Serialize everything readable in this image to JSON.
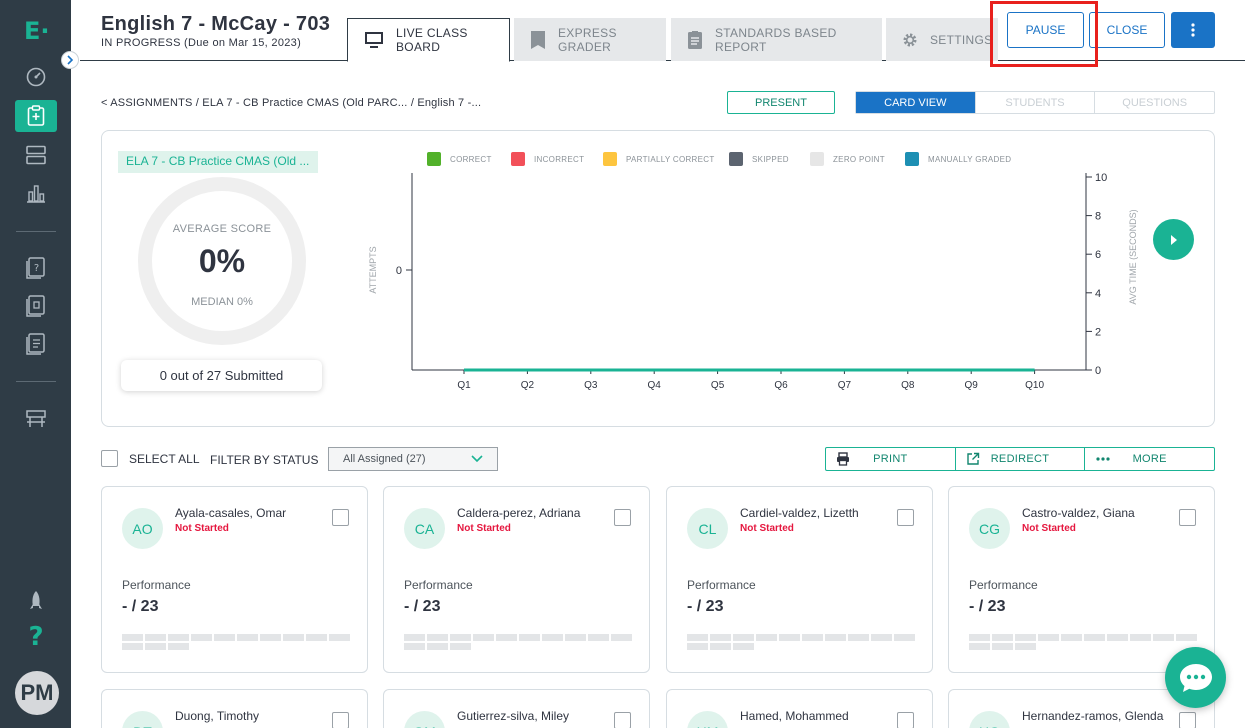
{
  "sidebar": {
    "logo": "E·",
    "user_initials": "PM",
    "items": [
      {
        "name": "dashboard"
      },
      {
        "name": "assignments",
        "active": true
      },
      {
        "name": "library"
      },
      {
        "name": "insights"
      },
      {
        "name": "item-bank"
      },
      {
        "name": "test-bank"
      },
      {
        "name": "playlist"
      },
      {
        "name": "classroom"
      },
      {
        "name": "whats-new"
      },
      {
        "name": "help"
      }
    ]
  },
  "header": {
    "title": "English 7 - McCay - 703",
    "status": "IN PROGRESS (Due on Mar 15, 2023)",
    "tabs": [
      {
        "label": "LIVE CLASS BOARD",
        "icon": "monitor-icon",
        "active": true
      },
      {
        "label": "EXPRESS GRADER",
        "icon": "bookmark-icon"
      },
      {
        "label": "STANDARDS BASED REPORT",
        "icon": "clipboard-icon"
      },
      {
        "label": "SETTINGS",
        "icon": "gear-icon"
      }
    ],
    "pause_label": "PAUSE",
    "close_label": "CLOSE"
  },
  "breadcrumb": "< ASSIGNMENTS / ELA 7 - CB Practice CMAS (Old PARC...  / English 7 -...",
  "present_label": "PRESENT",
  "views": [
    "CARD VIEW",
    "STUDENTS",
    "QUESTIONS"
  ],
  "summary": {
    "assignment_tag": "ELA 7 - CB Practice CMAS (Old ...",
    "avg_label": "AVERAGE SCORE",
    "avg_value": "0%",
    "median": "MEDIAN 0%",
    "submitted": "0 out of 27 Submitted"
  },
  "legend": [
    {
      "label": "CORRECT",
      "color": "#52b12a"
    },
    {
      "label": "INCORRECT",
      "color": "#f25059"
    },
    {
      "label": "PARTIALLY CORRECT",
      "color": "#fdc53f"
    },
    {
      "label": "SKIPPED",
      "color": "#5c6470"
    },
    {
      "label": "ZERO POINT",
      "color": "#e6e6e6"
    },
    {
      "label": "MANUALLY GRADED",
      "color": "#1d8fb3"
    }
  ],
  "chart_data": {
    "type": "bar",
    "categories": [
      "Q1",
      "Q2",
      "Q3",
      "Q4",
      "Q5",
      "Q6",
      "Q7",
      "Q8",
      "Q9",
      "Q10"
    ],
    "series": [],
    "avg_time_line": [
      0,
      0,
      0,
      0,
      0,
      0,
      0,
      0,
      0,
      0
    ],
    "ylabel_left": "ATTEMPTS",
    "ylabel_right": "AVG TIME (SECONDS)",
    "left_ticks": [
      "0"
    ],
    "right_ticks": [
      "10",
      "8",
      "6",
      "4",
      "2",
      "0"
    ],
    "ylim_right": [
      0,
      10
    ],
    "line_color": "#1ab394"
  },
  "filters": {
    "select_all": "SELECT ALL",
    "filter_label": "FILTER BY STATUS",
    "filter_value": "All Assigned (27)"
  },
  "actions": [
    "PRINT",
    "REDIRECT",
    "MORE"
  ],
  "card_common": {
    "perf_label": "Performance",
    "perf_score": "- / 23",
    "question_bar_count": 13
  },
  "students": [
    {
      "initials": "AO",
      "name": "Ayala-casales, Omar",
      "status": "Not Started"
    },
    {
      "initials": "CA",
      "name": "Caldera-perez, Adriana",
      "status": "Not Started"
    },
    {
      "initials": "CL",
      "name": "Cardiel-valdez, Lizetth",
      "status": "Not Started"
    },
    {
      "initials": "CG",
      "name": "Castro-valdez, Giana",
      "status": "Not Started"
    },
    {
      "initials": "DT",
      "name": "Duong, Timothy",
      "status": ""
    },
    {
      "initials": "GM",
      "name": "Gutierrez-silva, Miley",
      "status": ""
    },
    {
      "initials": "HM",
      "name": "Hamed, Mohammed",
      "status": ""
    },
    {
      "initials": "HG",
      "name": "Hernandez-ramos, Glenda",
      "status": ""
    }
  ]
}
